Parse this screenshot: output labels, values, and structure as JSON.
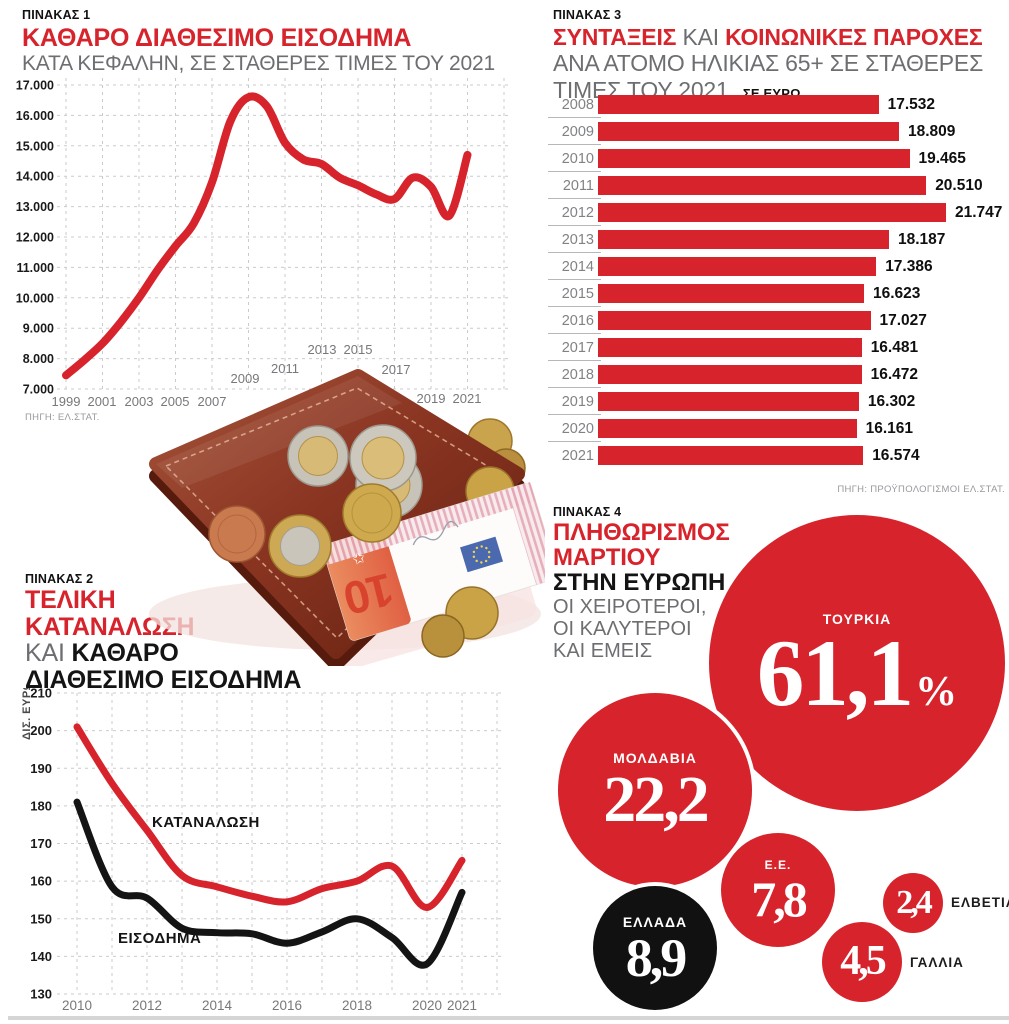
{
  "colors": {
    "red": "#d7232b",
    "ink": "#141414",
    "gray": "#6d6e71",
    "tick_gray": "#77787b",
    "grid": "#c9cbcd",
    "source_gray": "#97999d",
    "bubble_black": "#111111"
  },
  "panel1": {
    "kicker": "ΠΙΝΑΚΑΣ 1",
    "title": "ΚΑΘΑΡΟ ΔΙΑΘΕΣΙΜΟ ΕΙΣΟΔΗΜΑ",
    "subtitle": "ΚΑΤΑ ΚΕΦΑΛΗΝ, ΣΕ ΣΤΑΘΕΡΕΣ ΤΙΜΕΣ ΤΟΥ 2021",
    "source": "ΠΗΓΗ: ΕΛ.ΣΤΑΤ."
  },
  "panel3": {
    "kicker": "ΠΙΝΑΚΑΣ 3",
    "title_red_1": "ΣΥΝΤΑΞΕΙΣ",
    "title_connector": "ΚΑΙ",
    "title_red_2": "ΚΟΙΝΩΝΙΚΕΣ ΠΑΡΟΧΕΣ",
    "subtitle_line1": "ΑΝΑ ΑΤΟΜΟ ΗΛΙΚΙΑΣ 65+ ΣΕ ΣΤΑΘΕΡΕΣ",
    "subtitle_line2": "ΤΙΜΕΣ ΤΟΥ 2021",
    "unit_label": "ΣΕ ΕΥΡΩ",
    "source": "ΠΗΓΗ: ΠΡΟΫΠΟΛΟΓΙΣΜΟΙ ΕΛ.ΣΤΑΤ."
  },
  "panel2": {
    "kicker": "ΠΙΝΑΚΑΣ 2",
    "title_red_line1": "ΤΕΛΙΚΗ",
    "title_red_line2": "ΚΑΤΑΝΑΛΩΣΗ",
    "title_connector": "ΚΑΙ",
    "title_black_1": "ΚΑΘΑΡΟ",
    "title_black_2": "ΔΙΑΘΕΣΙΜΟ ΕΙΣΟΔΗΜΑ",
    "y_axis_label": "ΔΙΣ. ΕΥΡΩ"
  },
  "panel4": {
    "kicker": "ΠΙΝΑΚΑΣ 4",
    "title_red_line1": "ΠΛΗΘΩΡΙΣΜΟΣ",
    "title_red_line2": "ΜΑΡΤΙΟΥ",
    "title_black": "ΣΤΗΝ ΕΥΡΩΠΗ",
    "subtitle_line1": "ΟΙ ΧΕΙΡΟΤΕΡΟΙ,",
    "subtitle_line2": "ΟΙ ΚΑΛΥΤΕΡΟΙ",
    "subtitle_line3": "ΚΑΙ ΕΜΕΙΣ"
  },
  "wallet_note": {
    "denomination": "10"
  },
  "chart_data": [
    {
      "type": "line",
      "title": "ΚΑΘΑΡΟ ΔΙΑΘΕΣΙΜΟ ΕΙΣΟΔΗΜΑ ΚΑΤΑ ΚΕΦΑΛΗΝ, ΣΕ ΣΤΑΘΕΡΕΣ ΤΙΜΕΣ ΤΟΥ 2021",
      "x": [
        1999,
        2000,
        2001,
        2002,
        2003,
        2004,
        2005,
        2006,
        2007,
        2008,
        2009,
        2010,
        2011,
        2012,
        2013,
        2014,
        2015,
        2016,
        2017,
        2018,
        2019,
        2020,
        2021
      ],
      "series": [
        {
          "name": "ΚΑΘΑΡΟ ΔΙΑΘΕΣΙΜΟ ΕΙΣΟΔΗΜΑ",
          "color": "#d7232b",
          "values": [
            7450,
            7950,
            8500,
            9200,
            10000,
            10900,
            11700,
            12450,
            13800,
            15800,
            16600,
            16300,
            15100,
            14550,
            14400,
            13950,
            13700,
            13400,
            13250,
            13950,
            13650,
            12700,
            14700
          ]
        }
      ],
      "ylim": [
        7000,
        17000
      ],
      "ytick_step": 1000,
      "ytick_labels": [
        "17.000",
        "16.000",
        "15.000",
        "14.000",
        "13.000",
        "12.000",
        "11.000",
        "10.000",
        "9.000",
        "8.000",
        "7.000"
      ],
      "xtick_labels": [
        "1999",
        "2001",
        "2003",
        "2005",
        "2007",
        "2009",
        "2011",
        "2013",
        "2015",
        "2017",
        "2019",
        "2021"
      ],
      "grid": true,
      "legend_position": "none"
    },
    {
      "type": "bar",
      "orientation": "horizontal",
      "categories": [
        "2008",
        "2009",
        "2010",
        "2011",
        "2012",
        "2013",
        "2014",
        "2015",
        "2016",
        "2017",
        "2018",
        "2019",
        "2020",
        "2021"
      ],
      "values": [
        17532,
        18809,
        19465,
        20510,
        21747,
        18187,
        17386,
        16623,
        17027,
        16481,
        16472,
        16302,
        16161,
        16574
      ],
      "value_labels": [
        "17.532",
        "18.809",
        "19.465",
        "20.510",
        "21.747",
        "18.187",
        "17.386",
        "16.623",
        "17.027",
        "16.481",
        "16.472",
        "16.302",
        "16.161",
        "16.574"
      ],
      "xmax": 21747,
      "bar_color": "#d7232b",
      "ylabel": "",
      "xlabel": "ΣΕ ΕΥΡΩ"
    },
    {
      "type": "line",
      "x": [
        2010,
        2011,
        2012,
        2013,
        2014,
        2015,
        2016,
        2017,
        2018,
        2019,
        2020,
        2021
      ],
      "series": [
        {
          "name": "ΚΑΤΑΝΑΛΩΣΗ",
          "color": "#d7232b",
          "values": [
            201,
            186,
            173.5,
            161.5,
            158.5,
            156,
            154.5,
            158,
            160,
            164,
            153,
            165.5
          ]
        },
        {
          "name": "ΕΙΣΟΔΗΜΑ",
          "color": "#141414",
          "values": [
            181,
            158.5,
            155.5,
            147.5,
            146.3,
            146,
            143.5,
            146.5,
            150,
            145,
            138,
            157
          ]
        }
      ],
      "ylim": [
        130,
        210
      ],
      "ytick_step": 10,
      "ytick_labels": [
        "210",
        "200",
        "190",
        "180",
        "170",
        "160",
        "150",
        "140",
        "130"
      ],
      "xtick_labels": [
        "2010",
        "2012",
        "2014",
        "2016",
        "2018",
        "2020",
        "2021"
      ],
      "ylabel": "ΔΙΣ. ΕΥΡΩ",
      "grid": true
    },
    {
      "type": "bubble",
      "title": "ΠΛΗΘΩΡΙΣΜΟΣ ΜΑΡΤΙΟΥ ΣΤΗΝ ΕΥΡΩΠΗ",
      "items": [
        {
          "label": "ΤΟΥΡΚΙΑ",
          "value": 61.1,
          "display": "61,1",
          "unit": "%",
          "color": "#d7232b",
          "text_color": "#ffffff",
          "label_position": "inside"
        },
        {
          "label": "ΜΟΛΔΑΒΙΑ",
          "value": 22.2,
          "display": "22,2",
          "unit": "",
          "color": "#d7232b",
          "text_color": "#ffffff",
          "label_position": "inside"
        },
        {
          "label": "Ε.Ε.",
          "value": 7.8,
          "display": "7,8",
          "unit": "",
          "color": "#d7232b",
          "text_color": "#ffffff",
          "label_position": "inside"
        },
        {
          "label": "ΕΛΛΑΔΑ",
          "value": 8.9,
          "display": "8,9",
          "unit": "",
          "color": "#111111",
          "text_color": "#ffffff",
          "label_position": "inside"
        },
        {
          "label": "ΕΛΒΕΤΙΑ",
          "value": 2.4,
          "display": "2,4",
          "unit": "",
          "color": "#d7232b",
          "text_color": "#ffffff",
          "label_position": "outside"
        },
        {
          "label": "ΓΑΛΛΙΑ",
          "value": 4.5,
          "display": "4,5",
          "unit": "",
          "color": "#d7232b",
          "text_color": "#ffffff",
          "label_position": "outside"
        }
      ]
    }
  ]
}
